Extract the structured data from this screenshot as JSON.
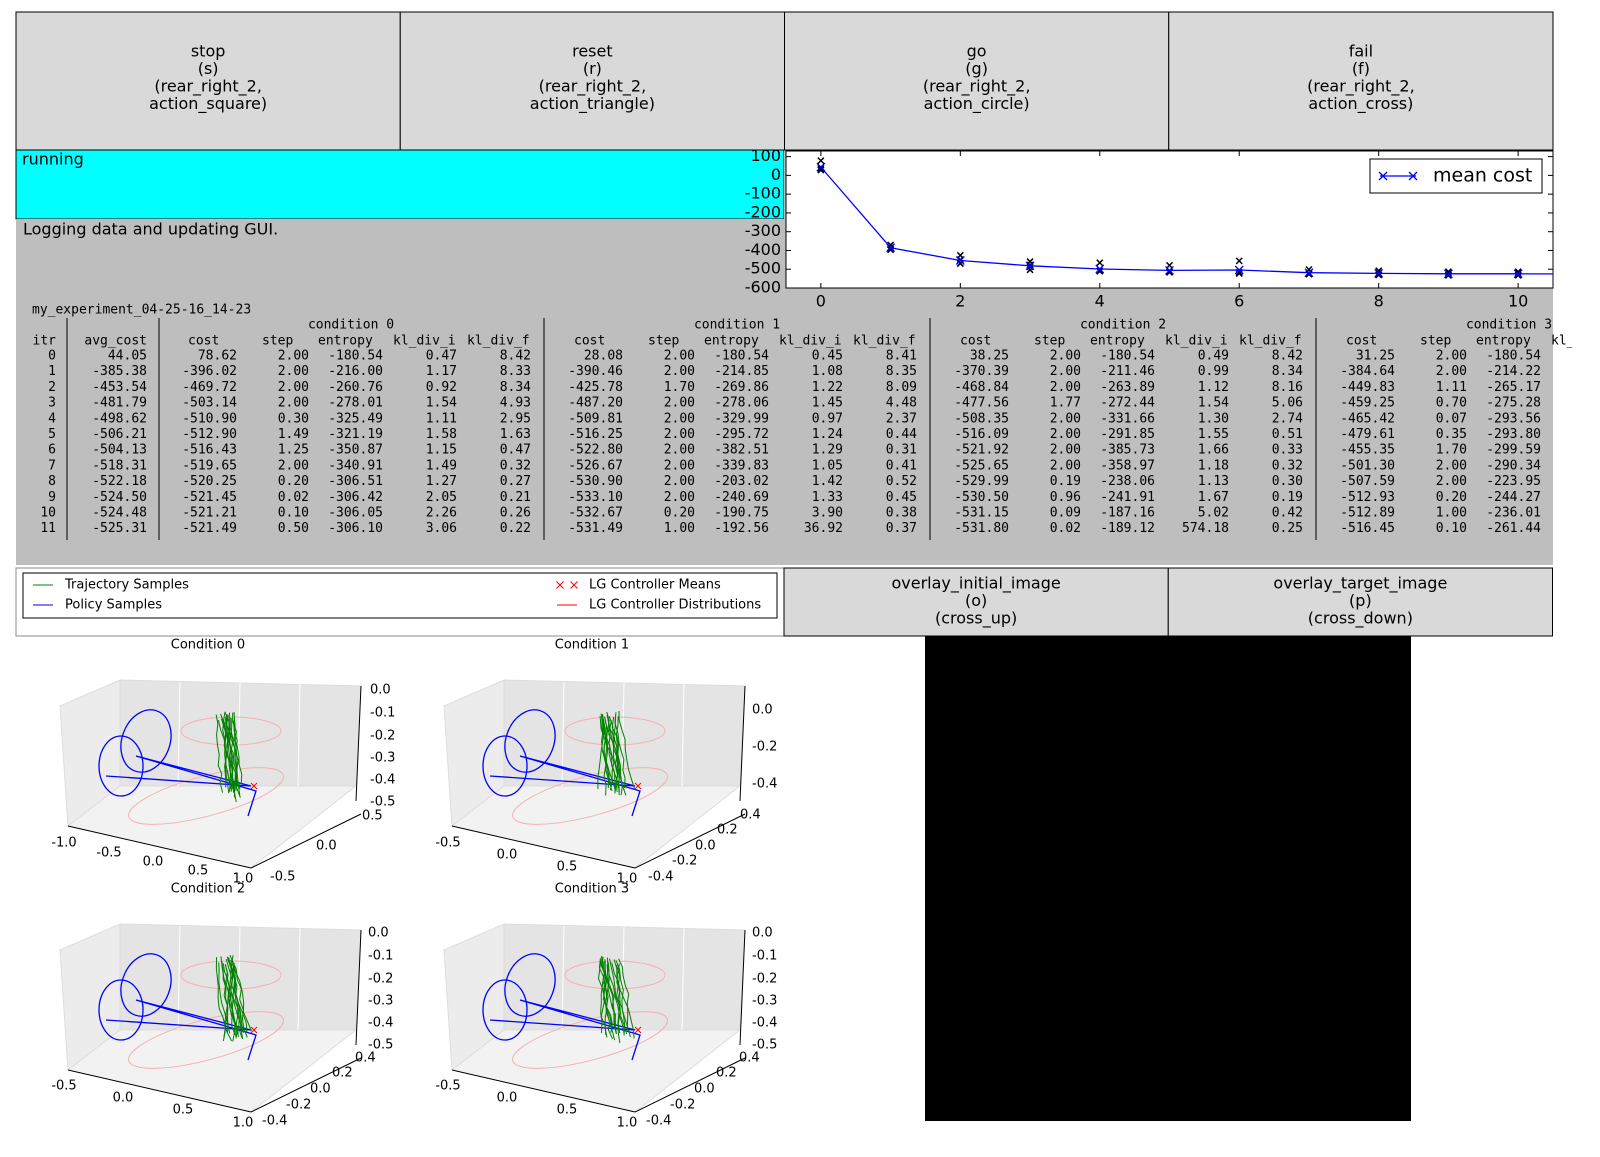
{
  "buttons": [
    {
      "lines": [
        "stop",
        "(s)",
        "(rear_right_2,",
        "action_square)"
      ]
    },
    {
      "lines": [
        "reset",
        "(r)",
        "(rear_right_2,",
        "action_triangle)"
      ]
    },
    {
      "lines": [
        "go",
        "(g)",
        "(rear_right_2,",
        "action_circle)"
      ]
    },
    {
      "lines": [
        "fail",
        "(f)",
        "(rear_right_2,",
        "action_cross)"
      ]
    }
  ],
  "status": "running",
  "message": "Logging data and updating GUI.",
  "chart_data": {
    "type": "line",
    "x": [
      0,
      1,
      2,
      3,
      4,
      5,
      6,
      7,
      8,
      9,
      10,
      11
    ],
    "series": [
      {
        "name": "mean cost",
        "color": "#0000ff",
        "values": [
          44.05,
          -385.38,
          -453.54,
          -481.79,
          -498.62,
          -506.21,
          -504.13,
          -518.31,
          -522.18,
          -524.5,
          -524.48,
          -525.31
        ]
      }
    ],
    "markers": {
      "color": "#000000",
      "values": [
        [
          78.62,
          28.08,
          38.25,
          31.25
        ],
        [
          -396.02,
          -390.46,
          -370.39,
          -384.64
        ],
        [
          -469.72,
          -425.78,
          -468.84,
          -449.83
        ],
        [
          -503.14,
          -487.2,
          -477.56,
          -459.25
        ],
        [
          -510.9,
          -509.81,
          -508.35,
          -465.42
        ],
        [
          -512.9,
          -516.25,
          -516.09,
          -479.61
        ],
        [
          -516.43,
          -522.8,
          -521.92,
          -455.35
        ],
        [
          -519.65,
          -526.67,
          -525.65,
          -501.3
        ],
        [
          -520.25,
          -530.9,
          -529.99,
          -507.59
        ],
        [
          -521.45,
          -533.1,
          -530.5,
          -512.93
        ],
        [
          -521.21,
          -532.67,
          -531.15,
          -512.89
        ],
        [
          -521.49,
          -531.49,
          -531.8,
          -516.45
        ]
      ]
    },
    "xlim": [
      -0.5,
      10.5
    ],
    "ylim": [
      -600,
      130
    ],
    "xticks": [
      0,
      2,
      4,
      6,
      8,
      10
    ],
    "yticks": [
      100,
      0,
      -100,
      -200,
      -300,
      -400,
      -500,
      -600
    ],
    "legend": "upper right"
  },
  "table": {
    "experiment": "my_experiment_04-25-16_14-23",
    "columns": [
      "itr",
      "avg_cost"
    ],
    "conditions": [
      {
        "name": "condition 0",
        "columns": [
          "cost",
          "step",
          "entropy",
          "kl_div_i",
          "kl_div_f"
        ]
      },
      {
        "name": "condition 1",
        "columns": [
          "cost",
          "step",
          "entropy",
          "kl_div_i",
          "kl_div_f"
        ]
      },
      {
        "name": "condition 2",
        "columns": [
          "cost",
          "step",
          "entropy",
          "kl_div_i",
          "kl_div_f"
        ]
      },
      {
        "name": "condition 3",
        "columns": [
          "cost",
          "step",
          "entropy",
          "kl_"
        ]
      }
    ],
    "rows": [
      [
        "0",
        "44.05",
        "78.62",
        "2.00",
        "-180.54",
        "0.47",
        "8.42",
        "28.08",
        "2.00",
        "-180.54",
        "0.45",
        "8.41",
        "38.25",
        "2.00",
        "-180.54",
        "0.49",
        "8.42",
        "31.25",
        "2.00",
        "-180.54"
      ],
      [
        "1",
        "-385.38",
        "-396.02",
        "2.00",
        "-216.00",
        "1.17",
        "8.33",
        "-390.46",
        "2.00",
        "-214.85",
        "1.08",
        "8.35",
        "-370.39",
        "2.00",
        "-211.46",
        "0.99",
        "8.34",
        "-384.64",
        "2.00",
        "-214.22"
      ],
      [
        "2",
        "-453.54",
        "-469.72",
        "2.00",
        "-260.76",
        "0.92",
        "8.34",
        "-425.78",
        "1.70",
        "-269.86",
        "1.22",
        "8.09",
        "-468.84",
        "2.00",
        "-263.89",
        "1.12",
        "8.16",
        "-449.83",
        "1.11",
        "-265.17"
      ],
      [
        "3",
        "-481.79",
        "-503.14",
        "2.00",
        "-278.01",
        "1.54",
        "4.93",
        "-487.20",
        "2.00",
        "-278.06",
        "1.45",
        "4.48",
        "-477.56",
        "1.77",
        "-272.44",
        "1.54",
        "5.06",
        "-459.25",
        "0.70",
        "-275.28"
      ],
      [
        "4",
        "-498.62",
        "-510.90",
        "0.30",
        "-325.49",
        "1.11",
        "2.95",
        "-509.81",
        "2.00",
        "-329.99",
        "0.97",
        "2.37",
        "-508.35",
        "2.00",
        "-331.66",
        "1.30",
        "2.74",
        "-465.42",
        "0.07",
        "-293.56"
      ],
      [
        "5",
        "-506.21",
        "-512.90",
        "1.49",
        "-321.19",
        "1.58",
        "1.63",
        "-516.25",
        "2.00",
        "-295.72",
        "1.24",
        "0.44",
        "-516.09",
        "2.00",
        "-291.85",
        "1.55",
        "0.51",
        "-479.61",
        "0.35",
        "-293.80"
      ],
      [
        "6",
        "-504.13",
        "-516.43",
        "1.25",
        "-350.87",
        "1.15",
        "0.47",
        "-522.80",
        "2.00",
        "-382.51",
        "1.29",
        "0.31",
        "-521.92",
        "2.00",
        "-385.73",
        "1.66",
        "0.33",
        "-455.35",
        "1.70",
        "-299.59"
      ],
      [
        "7",
        "-518.31",
        "-519.65",
        "2.00",
        "-340.91",
        "1.49",
        "0.32",
        "-526.67",
        "2.00",
        "-339.83",
        "1.05",
        "0.41",
        "-525.65",
        "2.00",
        "-358.97",
        "1.18",
        "0.32",
        "-501.30",
        "2.00",
        "-290.34"
      ],
      [
        "8",
        "-522.18",
        "-520.25",
        "0.20",
        "-306.51",
        "1.27",
        "0.27",
        "-530.90",
        "2.00",
        "-203.02",
        "1.42",
        "0.52",
        "-529.99",
        "0.19",
        "-238.06",
        "1.13",
        "0.30",
        "-507.59",
        "2.00",
        "-223.95"
      ],
      [
        "9",
        "-524.50",
        "-521.45",
        "0.02",
        "-306.42",
        "2.05",
        "0.21",
        "-533.10",
        "2.00",
        "-240.69",
        "1.33",
        "0.45",
        "-530.50",
        "0.96",
        "-241.91",
        "1.67",
        "0.19",
        "-512.93",
        "0.20",
        "-244.27"
      ],
      [
        "10",
        "-524.48",
        "-521.21",
        "0.10",
        "-306.05",
        "2.26",
        "0.26",
        "-532.67",
        "0.20",
        "-190.75",
        "3.90",
        "0.38",
        "-531.15",
        "0.09",
        "-187.16",
        "5.02",
        "0.42",
        "-512.89",
        "1.00",
        "-236.01"
      ],
      [
        "11",
        "-525.31",
        "-521.49",
        "0.50",
        "-306.10",
        "3.06",
        "0.22",
        "-531.49",
        "1.00",
        "-192.56",
        "36.92",
        "0.37",
        "-531.80",
        "0.02",
        "-189.12",
        "574.18",
        "0.25",
        "-516.45",
        "0.10",
        "-261.44"
      ]
    ]
  },
  "trajectory_legend": [
    {
      "label": "Trajectory Samples",
      "color": "#008000",
      "style": "line"
    },
    {
      "label": "Policy Samples",
      "color": "#0000ff",
      "style": "line"
    },
    {
      "label": "LG Controller Means",
      "color": "#ff0000",
      "style": "x"
    },
    {
      "label": "LG Controller Distributions",
      "color": "#ff0000",
      "style": "line"
    }
  ],
  "trajectory_plots": [
    {
      "title": "Condition 0",
      "x_tick_labels": [
        "-1.0",
        "-0.5",
        "0.0",
        "0.5",
        "1.0"
      ],
      "y_tick_labels": [
        "0.5",
        "0.0",
        "-0.5"
      ],
      "z_tick_labels": [
        "0.0",
        "-0.1",
        "-0.2",
        "-0.3",
        "-0.4",
        "-0.5"
      ]
    },
    {
      "title": "Condition 1",
      "x_tick_labels": [
        "-0.5",
        "0.0",
        "0.5",
        "1.0"
      ],
      "y_tick_labels": [
        "0.4",
        "0.2",
        "0.0",
        "-0.2",
        "-0.4"
      ],
      "z_tick_labels": [
        "0.0",
        "-0.2",
        "-0.4"
      ]
    },
    {
      "title": "Condition 2",
      "x_tick_labels": [
        "-0.5",
        "0.0",
        "0.5",
        "1.0"
      ],
      "y_tick_labels": [
        "0.4",
        "0.2",
        "0.0",
        "-0.2",
        "-0.4"
      ],
      "z_tick_labels": [
        "0.0",
        "-0.1",
        "-0.2",
        "-0.3",
        "-0.4",
        "-0.5"
      ]
    },
    {
      "title": "Condition 3",
      "x_tick_labels": [
        "-0.5",
        "0.0",
        "0.5",
        "1.0"
      ],
      "y_tick_labels": [
        "0.4",
        "0.2",
        "0.0",
        "-0.2",
        "-0.4"
      ],
      "z_tick_labels": [
        "0.0",
        "-0.1",
        "-0.2",
        "-0.3",
        "-0.4",
        "-0.5"
      ]
    }
  ],
  "image_buttons": [
    {
      "lines": [
        "overlay_initial_image",
        "(o)",
        "(cross_up)"
      ]
    },
    {
      "lines": [
        "overlay_target_image",
        "(p)",
        "(cross_down)"
      ]
    }
  ]
}
